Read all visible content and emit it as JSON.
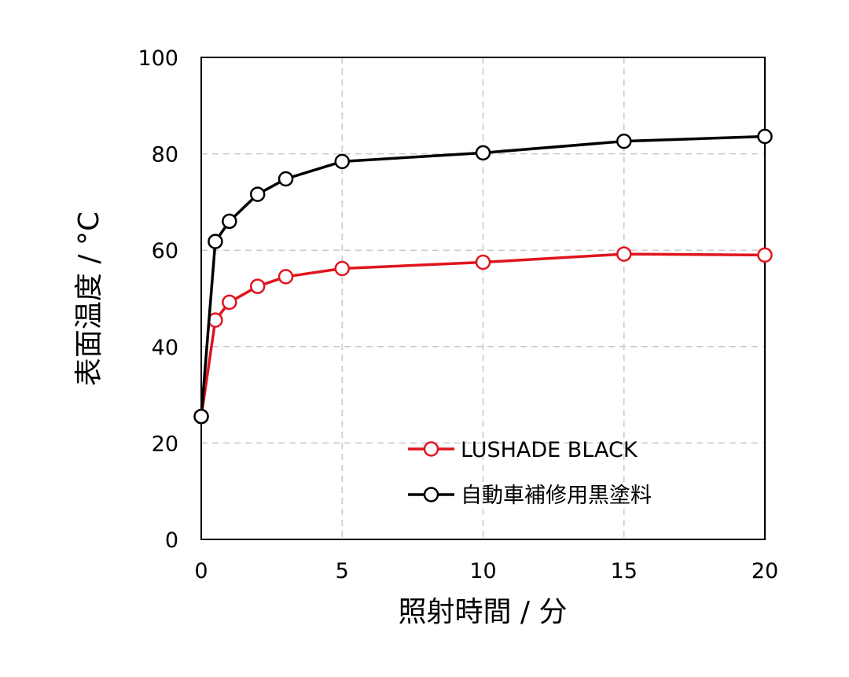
{
  "chart_data": {
    "type": "line",
    "xlabel": "照射時間 / 分",
    "ylabel": "表面温度 / °C",
    "xlim": [
      0,
      20
    ],
    "ylim": [
      0,
      100
    ],
    "x_ticks": [
      0,
      5,
      10,
      15,
      20
    ],
    "y_ticks": [
      0,
      20,
      40,
      60,
      80,
      100
    ],
    "grid": true,
    "legend_position": "lower-right",
    "series": [
      {
        "name": "LUSHADE BLACK",
        "color": "#e0141e",
        "marker": "open-circle",
        "x": [
          0,
          0.5,
          1,
          2,
          3,
          5,
          10,
          15,
          20
        ],
        "y": [
          25.5,
          45.5,
          49.2,
          52.5,
          54.5,
          56.2,
          57.5,
          59.2,
          59.0
        ]
      },
      {
        "name": "自動車補修用黒塗料",
        "color": "#000000",
        "marker": "open-circle",
        "x": [
          0,
          0.5,
          1,
          2,
          3,
          5,
          10,
          15,
          20
        ],
        "y": [
          25.5,
          61.8,
          66.0,
          71.6,
          74.8,
          78.4,
          80.2,
          82.6,
          83.6
        ]
      }
    ]
  }
}
